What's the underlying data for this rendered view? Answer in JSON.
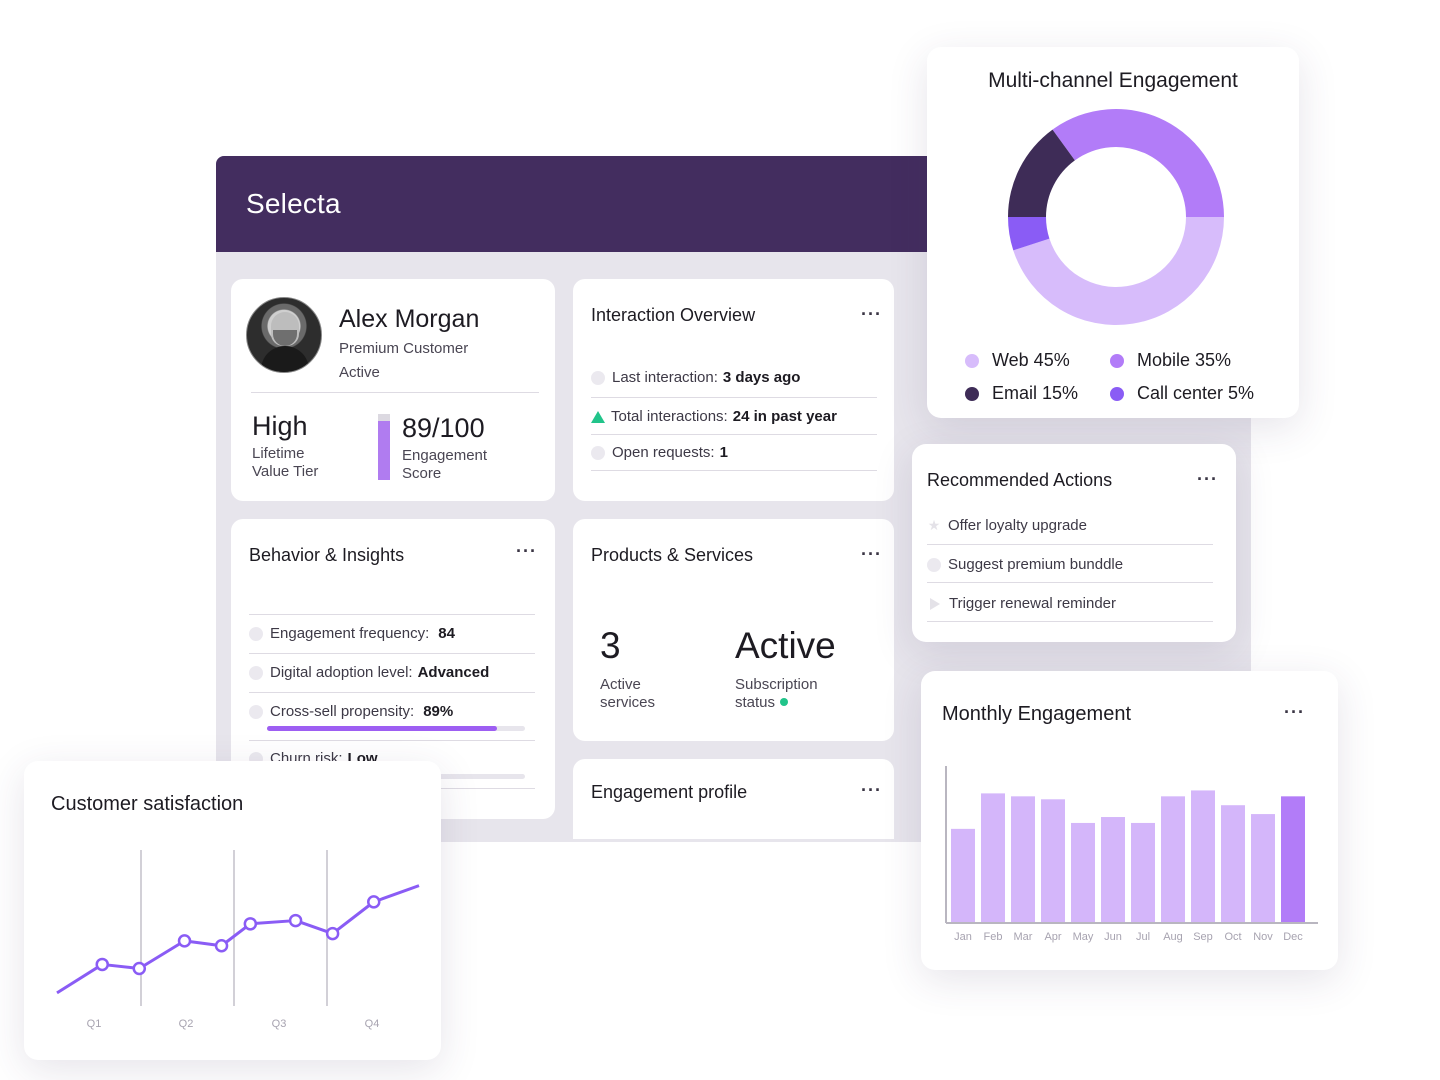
{
  "app": {
    "title": "Selecta"
  },
  "profile": {
    "name": "Alex Morgan",
    "segment": "Premium Customer",
    "status": "Active",
    "tier_value": "High",
    "tier_label_1": "Lifetime",
    "tier_label_2": "Value Tier",
    "score_value": "89/100",
    "score_fraction": 0.89,
    "score_label_1": "Engagement",
    "score_label_2": "Score"
  },
  "interaction": {
    "title": "Interaction Overview",
    "menu": "···",
    "rows": [
      {
        "label": "Last interaction:",
        "value": "3 days ago",
        "icon": "circle-icon"
      },
      {
        "label": "Total interactions:",
        "value": "24 in past year",
        "icon": "trend-up-icon"
      },
      {
        "label": "Open requests:",
        "value": "1",
        "icon": "circle-icon"
      }
    ]
  },
  "behavior": {
    "title": "Behavior & Insights",
    "menu": "···",
    "rows": [
      {
        "label": "Engagement frequency:",
        "value": "84"
      },
      {
        "label": "Digital adoption level:",
        "value": "Advanced"
      },
      {
        "label": "Cross-sell propensity:",
        "value": "89%",
        "progress": 0.89
      },
      {
        "label": "Churn risk:",
        "value": "Low",
        "progress": 0.0
      }
    ]
  },
  "products": {
    "title": "Products & Services",
    "menu": "···",
    "count_value": "3",
    "count_label_1": "Active",
    "count_label_2": "services",
    "status_value": "Active",
    "status_label_1": "Subscription",
    "status_label_2": "status"
  },
  "engagement_profile": {
    "title": "Engagement profile",
    "menu": "···"
  },
  "multichannel": {
    "title": "Multi-channel Engagement",
    "legend": [
      {
        "label": "Web 45%",
        "color": "#d7bcfb"
      },
      {
        "label": "Mobile 35%",
        "color": "#b27cf8"
      },
      {
        "label": "Email 15%",
        "color": "#3e2c57"
      },
      {
        "label": "Call center 5%",
        "color": "#8a5cf5"
      }
    ]
  },
  "recommended": {
    "title": "Recommended Actions",
    "menu": "···",
    "items": [
      {
        "label": "Offer loyalty upgrade",
        "icon": "star-icon"
      },
      {
        "label": "Suggest premium bunddle",
        "icon": "circle-icon"
      },
      {
        "label": "Trigger renewal reminder",
        "icon": "play-icon"
      }
    ]
  },
  "monthly": {
    "title": "Monthly Engagement",
    "menu": "···"
  },
  "csat": {
    "title": "Customer satisfaction"
  },
  "chart_data": [
    {
      "type": "pie",
      "title": "Multi-channel Engagement",
      "categories": [
        "Web",
        "Mobile",
        "Email",
        "Call center"
      ],
      "values": [
        45,
        35,
        15,
        5
      ],
      "colors": [
        "#d7bcfb",
        "#b27cf8",
        "#3e2c57",
        "#8a5cf5"
      ],
      "legend": "bottom"
    },
    {
      "type": "bar",
      "title": "Monthly Engagement",
      "categories": [
        "Jan",
        "Feb",
        "Mar",
        "Apr",
        "May",
        "Jun",
        "Jul",
        "Aug",
        "Sep",
        "Oct",
        "Nov",
        "Dec"
      ],
      "values": [
        63,
        87,
        85,
        83,
        67,
        71,
        67,
        85,
        89,
        79,
        73,
        85
      ],
      "ylim": [
        0,
        100
      ],
      "grid": false,
      "highlight_color": "#b27cf8",
      "bar_color": "#d4b6fa"
    },
    {
      "type": "line",
      "title": "Customer satisfaction",
      "categories": [
        "Q1",
        "Q2",
        "Q3",
        "Q4"
      ],
      "x": [
        0,
        0.55,
        1,
        1.55,
        2,
        2.35,
        2.9,
        3.35,
        3.85,
        4.4
      ],
      "values": [
        10,
        45,
        40,
        74,
        68,
        95,
        99,
        83,
        122,
        142
      ],
      "ylim": [
        0,
        160
      ],
      "grid": true
    }
  ]
}
